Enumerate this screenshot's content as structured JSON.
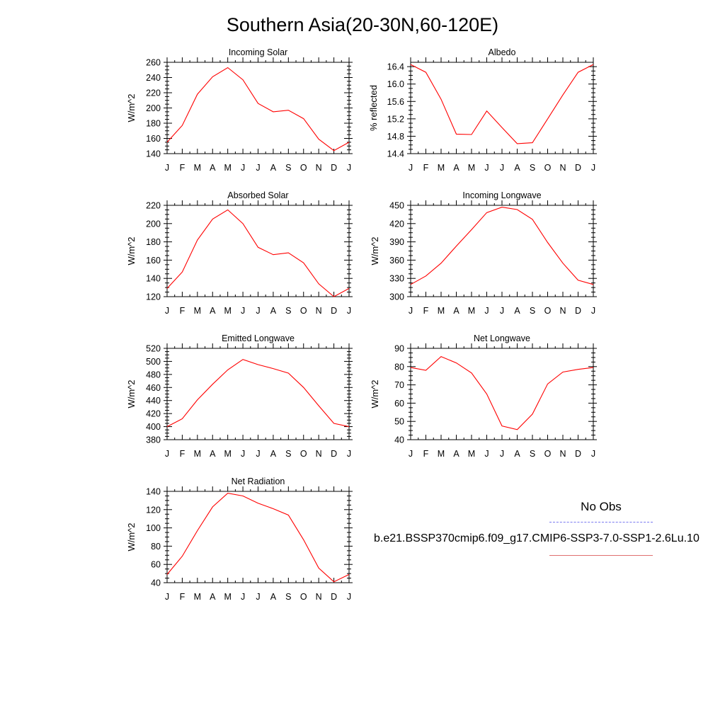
{
  "page": {
    "title": "Southern Asia(20-30N,60-120E)"
  },
  "legend": {
    "obs_label": "No Obs",
    "case_label": "b.e21.BSSP370cmip6.f09_g17.CMIP6-SSP3-7.0-SSP1-2.6Lu.10",
    "case_color": "#ff0000",
    "obs_color": "#7a7af0"
  },
  "chart_data": [
    {
      "type": "line",
      "title": "Incoming Solar",
      "ylabel": "W/m^2",
      "categories": [
        "J",
        "F",
        "M",
        "A",
        "M",
        "J",
        "J",
        "A",
        "S",
        "O",
        "N",
        "D",
        "J"
      ],
      "ylim": [
        140,
        260
      ],
      "yticks": [
        140,
        160,
        180,
        200,
        220,
        240,
        260
      ],
      "ytick_labels": [
        "140",
        "160",
        "180",
        "200",
        "220",
        "240",
        "260"
      ],
      "series": [
        {
          "values": [
            155,
            177,
            218,
            241,
            253,
            237,
            206,
            195,
            197,
            186,
            159,
            144,
            155
          ]
        }
      ]
    },
    {
      "type": "line",
      "title": "Albedo",
      "ylabel": "% reflected",
      "categories": [
        "J",
        "F",
        "M",
        "A",
        "M",
        "J",
        "J",
        "A",
        "S",
        "O",
        "N",
        "D",
        "J"
      ],
      "ylim": [
        14.4,
        16.5
      ],
      "yticks": [
        14.4,
        14.8,
        15.2,
        15.6,
        16.0,
        16.4
      ],
      "ytick_labels": [
        "14.4",
        "14.8",
        "15.2",
        "15.6",
        "16.0",
        "16.4"
      ],
      "series": [
        {
          "values": [
            16.45,
            16.27,
            15.65,
            14.85,
            14.84,
            15.38,
            15.0,
            14.63,
            14.65,
            15.2,
            15.75,
            16.27,
            16.45
          ]
        }
      ]
    },
    {
      "type": "line",
      "title": "Absorbed Solar",
      "ylabel": "W/m^2",
      "categories": [
        "J",
        "F",
        "M",
        "A",
        "M",
        "J",
        "J",
        "A",
        "S",
        "O",
        "N",
        "D",
        "J"
      ],
      "ylim": [
        120,
        220
      ],
      "yticks": [
        120,
        140,
        160,
        180,
        200,
        220
      ],
      "ytick_labels": [
        "120",
        "140",
        "160",
        "180",
        "200",
        "220"
      ],
      "series": [
        {
          "values": [
            129,
            147,
            182,
            205,
            215,
            200,
            174,
            166,
            168,
            157,
            134,
            120,
            129
          ]
        }
      ]
    },
    {
      "type": "line",
      "title": "Incoming Longwave",
      "ylabel": "W/m^2",
      "categories": [
        "J",
        "F",
        "M",
        "A",
        "M",
        "J",
        "J",
        "A",
        "S",
        "O",
        "N",
        "D",
        "J"
      ],
      "ylim": [
        300,
        450
      ],
      "yticks": [
        300,
        330,
        360,
        390,
        420,
        450
      ],
      "ytick_labels": [
        "300",
        "330",
        "360",
        "390",
        "420",
        "450"
      ],
      "series": [
        {
          "values": [
            320,
            334,
            355,
            383,
            410,
            438,
            447,
            443,
            427,
            389,
            355,
            327,
            320
          ]
        }
      ]
    },
    {
      "type": "line",
      "title": "Emitted Longwave",
      "ylabel": "W/m^2",
      "categories": [
        "J",
        "F",
        "M",
        "A",
        "M",
        "J",
        "J",
        "A",
        "S",
        "O",
        "N",
        "D",
        "J"
      ],
      "ylim": [
        380,
        520
      ],
      "yticks": [
        380,
        400,
        420,
        440,
        460,
        480,
        500,
        520
      ],
      "ytick_labels": [
        "380",
        "400",
        "420",
        "440",
        "460",
        "480",
        "500",
        "520"
      ],
      "series": [
        {
          "values": [
            400,
            412,
            441,
            465,
            487,
            503,
            495,
            489,
            482,
            460,
            432,
            405,
            400
          ]
        }
      ]
    },
    {
      "type": "line",
      "title": "Net Longwave",
      "ylabel": "W/m^2",
      "categories": [
        "J",
        "F",
        "M",
        "A",
        "M",
        "J",
        "J",
        "A",
        "S",
        "O",
        "N",
        "D",
        "J"
      ],
      "ylim": [
        40,
        90
      ],
      "yticks": [
        40,
        50,
        60,
        70,
        80,
        90
      ],
      "ytick_labels": [
        "40",
        "50",
        "60",
        "70",
        "80",
        "90"
      ],
      "series": [
        {
          "values": [
            79.5,
            78,
            85.5,
            82,
            76.5,
            65,
            47.5,
            45.5,
            54,
            70.5,
            77,
            78.5,
            79.5
          ]
        }
      ]
    },
    {
      "type": "line",
      "title": "Net Radiation",
      "ylabel": "W/m^2",
      "categories": [
        "J",
        "F",
        "M",
        "A",
        "M",
        "J",
        "J",
        "A",
        "S",
        "O",
        "N",
        "D",
        "J"
      ],
      "ylim": [
        40,
        140
      ],
      "yticks": [
        40,
        60,
        80,
        100,
        120,
        140
      ],
      "ytick_labels": [
        "40",
        "60",
        "80",
        "100",
        "120",
        "140"
      ],
      "series": [
        {
          "values": [
            49,
            69,
            97,
            123,
            138,
            135,
            127,
            121,
            114,
            87,
            56,
            41,
            49
          ]
        }
      ]
    }
  ]
}
